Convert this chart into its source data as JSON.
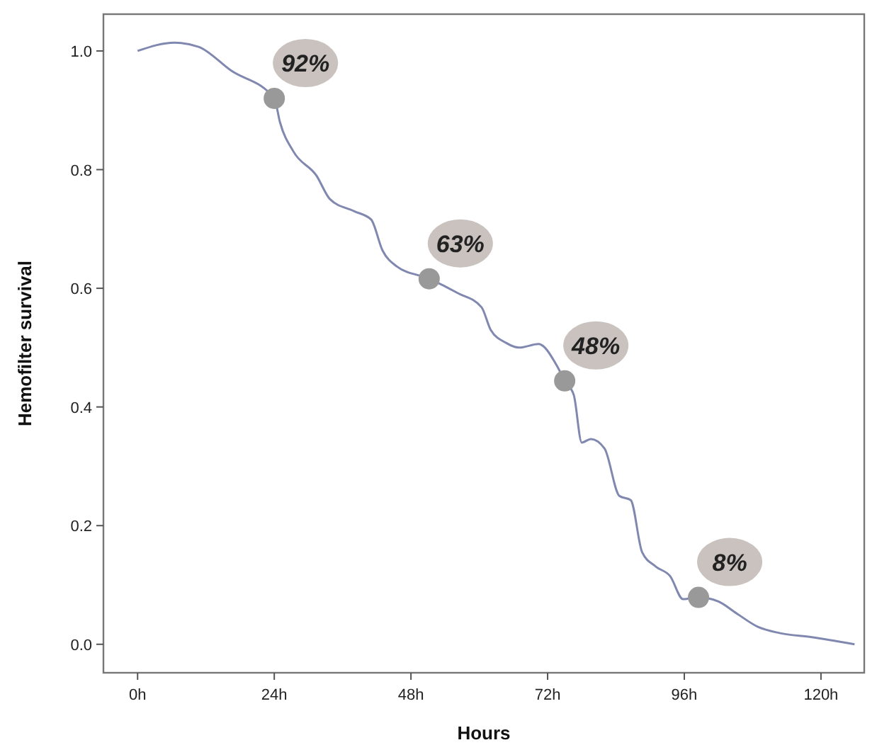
{
  "chart_data": {
    "type": "line",
    "xlabel": "Hours",
    "ylabel": "Hemofilter survival",
    "xlim": [
      -6,
      127.6
    ],
    "ylim": [
      -0.048,
      1.062
    ],
    "xticks": [
      {
        "value": 0,
        "label": "0h"
      },
      {
        "value": 24,
        "label": "24h"
      },
      {
        "value": 48,
        "label": "48h"
      },
      {
        "value": 72,
        "label": "72h"
      },
      {
        "value": 96,
        "label": "96h"
      },
      {
        "value": 120,
        "label": "120h"
      }
    ],
    "yticks": [
      {
        "value": 0,
        "label": "0.0"
      },
      {
        "value": 0.2,
        "label": "0.2"
      },
      {
        "value": 0.4,
        "label": "0.4"
      },
      {
        "value": 0.6,
        "label": "0.6"
      },
      {
        "value": 0.8,
        "label": "0.8"
      },
      {
        "value": 1,
        "label": "1.0"
      }
    ],
    "grid": false,
    "series": [
      {
        "color": "#8088b0",
        "marker": "none",
        "line_style": "solid",
        "x": [
          0,
          6.5,
          10.7,
          16.4,
          24,
          25,
          27.4,
          31.4,
          33.8,
          38,
          41,
          43,
          45.5,
          51.2,
          56.2,
          60.4,
          62,
          64.7,
          67,
          70.4,
          73.6,
          75,
          76.6,
          78,
          79.6,
          82,
          84.6,
          86.6,
          88.6,
          91,
          93.5,
          95.8,
          98.5,
          102,
          105.2,
          109,
          112.7,
          118.4,
          125.9
        ],
        "values": [
          1.0,
          1.014,
          1.007,
          0.967,
          0.92,
          0.88,
          0.83,
          0.79,
          0.75,
          0.73,
          0.716,
          0.664,
          0.637,
          0.616,
          0.592,
          0.568,
          0.53,
          0.508,
          0.5,
          0.506,
          0.47,
          0.444,
          0.42,
          0.34,
          0.346,
          0.33,
          0.25,
          0.243,
          0.155,
          0.131,
          0.115,
          0.076,
          0.079,
          0.072,
          0.052,
          0.029,
          0.019,
          0.012,
          0.0
        ]
      },
      {
        "type": "scatter",
        "color": "#999999",
        "marker": "circle",
        "x": [
          24,
          51.2,
          75,
          98.5
        ],
        "values": [
          0.92,
          0.616,
          0.444,
          0.079
        ]
      }
    ],
    "annotations": [
      {
        "text": "92%",
        "x": 24,
        "y": 0.92
      },
      {
        "text": "63%",
        "x": 51.2,
        "y": 0.616
      },
      {
        "text": "48%",
        "x": 75,
        "y": 0.444
      },
      {
        "text": "8%",
        "x": 98.5,
        "y": 0.079
      }
    ]
  }
}
